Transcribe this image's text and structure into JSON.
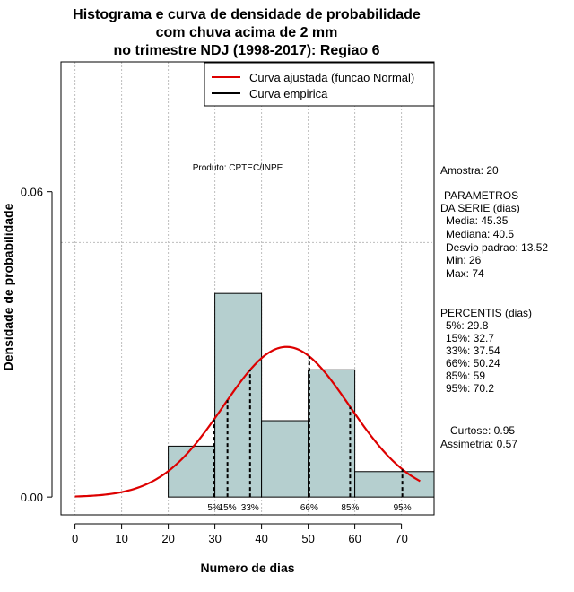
{
  "chart_data": {
    "type": "histogram",
    "title": [
      "Histograma e curva de densidade de probabilidade",
      "com chuva acima de 2 mm",
      "no trimestre NDJ (1998-2017): Regiao 6"
    ],
    "xlabel": "Numero de dias",
    "ylabel": "Densidade de probabilidade",
    "xlim": [
      -3,
      77
    ],
    "ylim": [
      -0.0035,
      0.0855
    ],
    "x_ticks": [
      "0",
      "10",
      "20",
      "30",
      "40",
      "50",
      "60",
      "70"
    ],
    "y_ticks": [
      "0.00",
      "0.06"
    ],
    "bins": [
      {
        "x0": 20,
        "x1": 30,
        "density": 0.01
      },
      {
        "x0": 30,
        "x1": 40,
        "density": 0.04
      },
      {
        "x0": 40,
        "x1": 50,
        "density": 0.015
      },
      {
        "x0": 50,
        "x1": 60,
        "density": 0.025
      },
      {
        "x0": 60,
        "x1": 77,
        "density": 0.005
      }
    ],
    "bar_color": "#b5cfcf",
    "normal_fit": {
      "mean": 45.35,
      "sd": 13.52,
      "color": "#dd0000",
      "x_range": [
        0,
        74
      ]
    },
    "percentile_lines": [
      29.8,
      32.7,
      37.54,
      50.24,
      59,
      70.2
    ],
    "percentile_labels": [
      {
        "text": "5%",
        "x": 29.8
      },
      {
        "text": "15%",
        "x": 32.7
      },
      {
        "text": "33%",
        "x": 37.54
      },
      {
        "text": "66%",
        "x": 50.24
      },
      {
        "text": "85%",
        "x": 59
      },
      {
        "text": "95%",
        "x": 70.2
      }
    ],
    "legend": {
      "position": "top-right",
      "entries": [
        {
          "label": "Curva ajustada (funcao Normal)",
          "color": "#dd0000"
        },
        {
          "label": "Curva empirica",
          "color": "#000000"
        }
      ]
    },
    "grid": true,
    "hline_y": 0.05,
    "annotation": "Produto: CPTEC/INPE"
  },
  "side_panel": {
    "sample": "Amostra: 20",
    "params_title": [
      "PARAMETROS",
      "DA SERIE (dias)"
    ],
    "params": [
      "Media: 45.35",
      "Mediana: 40.5",
      "Desvio padrao: 13.52",
      "Min: 26",
      "Max: 74"
    ],
    "percentis_title": "PERCENTIS (dias)",
    "percentis": [
      "5%: 29.8",
      "15%: 32.7",
      "33%: 37.54",
      "66%: 50.24",
      "85%: 59",
      "95%: 70.2"
    ],
    "curtose": "Curtose: 0.95",
    "assimetria": "Assimetria: 0.57"
  }
}
